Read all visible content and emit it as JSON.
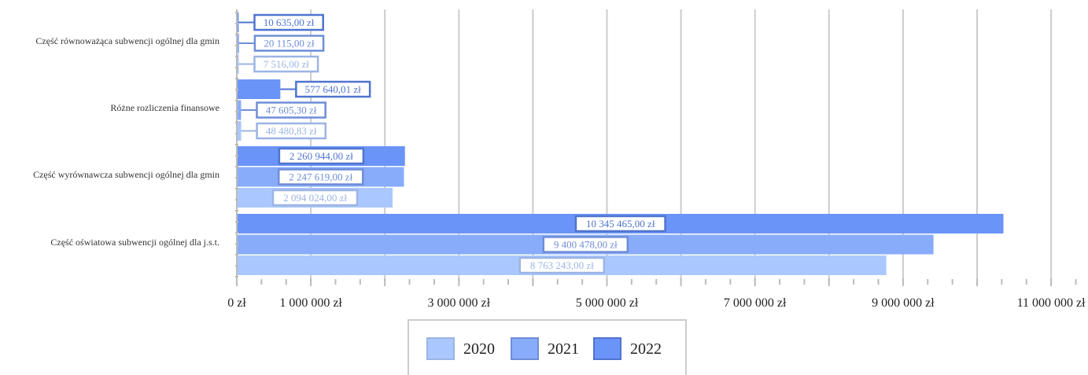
{
  "chart_data": {
    "type": "bar",
    "orientation": "horizontal",
    "categories": [
      "Część równoważąca subwencji ogólnej dla gmin",
      "Różne rozliczenia finansowe",
      "Część wyrównawcza subwencji ogólnej dla gmin",
      "Część oświatowa subwencji ogólnej dla j.s.t."
    ],
    "series": [
      {
        "name": "2020",
        "color": "#aac8ff",
        "values": [
          7516.0,
          48480.83,
          2094024.0,
          8763243.0
        ],
        "labels": [
          "7 516,00 zł",
          "48 480,83 zł",
          "2 094 024,00 zł",
          "8 763 243,00 zł"
        ]
      },
      {
        "name": "2021",
        "color": "#88acfa",
        "values": [
          20115.0,
          47605.3,
          2247619.0,
          9400478.0
        ],
        "labels": [
          "20 115,00 zł",
          "47 605,30 zł",
          "2 247 619,00 zł",
          "9 400 478,00 zł"
        ]
      },
      {
        "name": "2022",
        "color": "#6a94f7",
        "values": [
          10635.0,
          577640.01,
          2260944.0,
          10345465.0
        ],
        "labels": [
          "10 635,00 zł",
          "577 640,01 zł",
          "2 260 944,00 zł",
          "10 345 465,00 zł"
        ]
      }
    ],
    "label_colors": {
      "2020": "#9cb4e4",
      "2021": "#6f8dd8",
      "2022": "#4f74cf"
    },
    "xlim": [
      0,
      11500000
    ],
    "tick_values": [
      0,
      1000000,
      3000000,
      5000000,
      7000000,
      9000000,
      11000000
    ],
    "tick_labels": [
      "0 zł",
      "1 000 000 zł",
      "3 000 000 zł",
      "5 000 000 zł",
      "7 000 000 zł",
      "9 000 000 zł",
      "11 000 000 zł"
    ],
    "gridlines": [
      1000000,
      2000000,
      3000000,
      4000000,
      5000000,
      6000000,
      7000000,
      8000000,
      9000000,
      10000000,
      11000000
    ],
    "grid": true,
    "legend_position": "bottom"
  }
}
